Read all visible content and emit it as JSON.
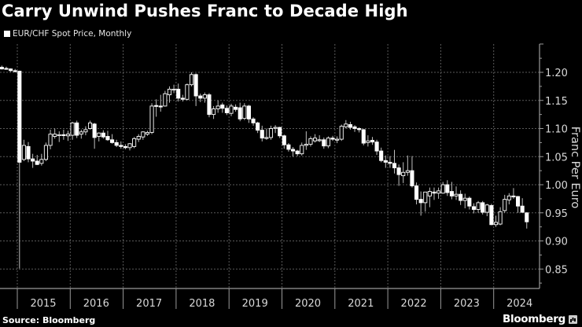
{
  "title": "Carry Unwind Pushes Franc to Decade High",
  "legend": {
    "label": "EUR/CHF Spot Price, Monthly"
  },
  "footer": {
    "source": "Source: Bloomberg",
    "brand": "Bloomberg"
  },
  "colors": {
    "background": "#000000",
    "candle_up_fill": "#000000",
    "candle_down_fill": "#ffffff",
    "candle_stroke": "#ffffff",
    "wick": "#bfbfbf",
    "grid": "#5a5a5a",
    "axis": "#9a9a9a",
    "text": "#ffffff"
  },
  "chart_data": {
    "type": "candlestick",
    "title": "Carry Unwind Pushes Franc to Decade High",
    "subtitle": "EUR/CHF Spot Price, Monthly",
    "xlabel": "",
    "ylabel": "Franc Per Euro",
    "ylim": [
      0.83,
      1.23
    ],
    "yticks": [
      1.2,
      1.15,
      1.1,
      1.05,
      1.0,
      0.95,
      0.9,
      0.85
    ],
    "ytick_labels": [
      "1.20",
      "1.15",
      "1.10",
      "1.05",
      "1.00",
      "0.95",
      "0.90",
      "0.85"
    ],
    "xticks": [
      "2015",
      "2016",
      "2017",
      "2018",
      "2019",
      "2020",
      "2021",
      "2022",
      "2023",
      "2024"
    ],
    "grid": true,
    "y_axis_position": "right",
    "source": "Source: Bloomberg",
    "candles": [
      {
        "t": "2014-09",
        "o": 1.209,
        "h": 1.212,
        "l": 1.205,
        "c": 1.206
      },
      {
        "t": "2014-10",
        "o": 1.207,
        "h": 1.21,
        "l": 1.205,
        "c": 1.206
      },
      {
        "t": "2014-11",
        "o": 1.206,
        "h": 1.207,
        "l": 1.201,
        "c": 1.203
      },
      {
        "t": "2014-12",
        "o": 1.203,
        "h": 1.206,
        "l": 1.2,
        "c": 1.202
      },
      {
        "t": "2015-01",
        "o": 1.202,
        "h": 1.203,
        "l": 0.851,
        "c": 1.04
      },
      {
        "t": "2015-02",
        "o": 1.045,
        "h": 1.08,
        "l": 1.042,
        "c": 1.07
      },
      {
        "t": "2015-03",
        "o": 1.068,
        "h": 1.076,
        "l": 1.04,
        "c": 1.046
      },
      {
        "t": "2015-04",
        "o": 1.046,
        "h": 1.055,
        "l": 1.03,
        "c": 1.042
      },
      {
        "t": "2015-05",
        "o": 1.042,
        "h": 1.053,
        "l": 1.035,
        "c": 1.036
      },
      {
        "t": "2015-06",
        "o": 1.038,
        "h": 1.055,
        "l": 1.034,
        "c": 1.045
      },
      {
        "t": "2015-07",
        "o": 1.045,
        "h": 1.075,
        "l": 1.042,
        "c": 1.07
      },
      {
        "t": "2015-08",
        "o": 1.07,
        "h": 1.098,
        "l": 1.063,
        "c": 1.09
      },
      {
        "t": "2015-09",
        "o": 1.086,
        "h": 1.1,
        "l": 1.082,
        "c": 1.09
      },
      {
        "t": "2015-10",
        "o": 1.088,
        "h": 1.095,
        "l": 1.076,
        "c": 1.089
      },
      {
        "t": "2015-11",
        "o": 1.089,
        "h": 1.098,
        "l": 1.08,
        "c": 1.088
      },
      {
        "t": "2015-12",
        "o": 1.087,
        "h": 1.096,
        "l": 1.078,
        "c": 1.09
      },
      {
        "t": "2016-01",
        "o": 1.088,
        "h": 1.112,
        "l": 1.08,
        "c": 1.11
      },
      {
        "t": "2016-02",
        "o": 1.11,
        "h": 1.114,
        "l": 1.083,
        "c": 1.088
      },
      {
        "t": "2016-03",
        "o": 1.09,
        "h": 1.098,
        "l": 1.082,
        "c": 1.094
      },
      {
        "t": "2016-04",
        "o": 1.094,
        "h": 1.104,
        "l": 1.088,
        "c": 1.098
      },
      {
        "t": "2016-05",
        "o": 1.1,
        "h": 1.114,
        "l": 1.098,
        "c": 1.11
      },
      {
        "t": "2016-06",
        "o": 1.108,
        "h": 1.11,
        "l": 1.064,
        "c": 1.084
      },
      {
        "t": "2016-07",
        "o": 1.086,
        "h": 1.093,
        "l": 1.077,
        "c": 1.092
      },
      {
        "t": "2016-08",
        "o": 1.092,
        "h": 1.097,
        "l": 1.082,
        "c": 1.085
      },
      {
        "t": "2016-09",
        "o": 1.086,
        "h": 1.096,
        "l": 1.078,
        "c": 1.08
      },
      {
        "t": "2016-10",
        "o": 1.08,
        "h": 1.09,
        "l": 1.073,
        "c": 1.075
      },
      {
        "t": "2016-11",
        "o": 1.075,
        "h": 1.08,
        "l": 1.067,
        "c": 1.07
      },
      {
        "t": "2016-12",
        "o": 1.07,
        "h": 1.077,
        "l": 1.064,
        "c": 1.068
      },
      {
        "t": "2017-01",
        "o": 1.068,
        "h": 1.072,
        "l": 1.063,
        "c": 1.066
      },
      {
        "t": "2017-02",
        "o": 1.066,
        "h": 1.074,
        "l": 1.061,
        "c": 1.073
      },
      {
        "t": "2017-03",
        "o": 1.068,
        "h": 1.085,
        "l": 1.065,
        "c": 1.082
      },
      {
        "t": "2017-04",
        "o": 1.081,
        "h": 1.09,
        "l": 1.076,
        "c": 1.086
      },
      {
        "t": "2017-05",
        "o": 1.085,
        "h": 1.095,
        "l": 1.08,
        "c": 1.094
      },
      {
        "t": "2017-06",
        "o": 1.09,
        "h": 1.096,
        "l": 1.087,
        "c": 1.093
      },
      {
        "t": "2017-07",
        "o": 1.093,
        "h": 1.145,
        "l": 1.09,
        "c": 1.14
      },
      {
        "t": "2017-08",
        "o": 1.141,
        "h": 1.152,
        "l": 1.121,
        "c": 1.14
      },
      {
        "t": "2017-09",
        "o": 1.14,
        "h": 1.16,
        "l": 1.13,
        "c": 1.139
      },
      {
        "t": "2017-10",
        "o": 1.14,
        "h": 1.167,
        "l": 1.139,
        "c": 1.162
      },
      {
        "t": "2017-11",
        "o": 1.16,
        "h": 1.175,
        "l": 1.146,
        "c": 1.17
      },
      {
        "t": "2017-12",
        "o": 1.169,
        "h": 1.178,
        "l": 1.163,
        "c": 1.17
      },
      {
        "t": "2018-01",
        "o": 1.17,
        "h": 1.18,
        "l": 1.148,
        "c": 1.154
      },
      {
        "t": "2018-02",
        "o": 1.154,
        "h": 1.16,
        "l": 1.148,
        "c": 1.152
      },
      {
        "t": "2018-03",
        "o": 1.152,
        "h": 1.18,
        "l": 1.15,
        "c": 1.178
      },
      {
        "t": "2018-04",
        "o": 1.178,
        "h": 1.2,
        "l": 1.175,
        "c": 1.196
      },
      {
        "t": "2018-05",
        "o": 1.196,
        "h": 1.198,
        "l": 1.14,
        "c": 1.158
      },
      {
        "t": "2018-06",
        "o": 1.158,
        "h": 1.162,
        "l": 1.147,
        "c": 1.154
      },
      {
        "t": "2018-07",
        "o": 1.154,
        "h": 1.164,
        "l": 1.146,
        "c": 1.16
      },
      {
        "t": "2018-08",
        "o": 1.16,
        "h": 1.163,
        "l": 1.12,
        "c": 1.125
      },
      {
        "t": "2018-09",
        "o": 1.125,
        "h": 1.14,
        "l": 1.117,
        "c": 1.135
      },
      {
        "t": "2018-10",
        "o": 1.135,
        "h": 1.15,
        "l": 1.128,
        "c": 1.14
      },
      {
        "t": "2018-11",
        "o": 1.142,
        "h": 1.146,
        "l": 1.128,
        "c": 1.136
      },
      {
        "t": "2018-12",
        "o": 1.136,
        "h": 1.141,
        "l": 1.124,
        "c": 1.128
      },
      {
        "t": "2019-01",
        "o": 1.127,
        "h": 1.144,
        "l": 1.122,
        "c": 1.14
      },
      {
        "t": "2019-02",
        "o": 1.138,
        "h": 1.143,
        "l": 1.13,
        "c": 1.134
      },
      {
        "t": "2019-03",
        "o": 1.137,
        "h": 1.146,
        "l": 1.113,
        "c": 1.117
      },
      {
        "t": "2019-04",
        "o": 1.118,
        "h": 1.145,
        "l": 1.115,
        "c": 1.14
      },
      {
        "t": "2019-05",
        "o": 1.14,
        "h": 1.142,
        "l": 1.11,
        "c": 1.117
      },
      {
        "t": "2019-06",
        "o": 1.117,
        "h": 1.12,
        "l": 1.105,
        "c": 1.11
      },
      {
        "t": "2019-07",
        "o": 1.11,
        "h": 1.112,
        "l": 1.092,
        "c": 1.097
      },
      {
        "t": "2019-08",
        "o": 1.097,
        "h": 1.105,
        "l": 1.077,
        "c": 1.083
      },
      {
        "t": "2019-09",
        "o": 1.083,
        "h": 1.1,
        "l": 1.08,
        "c": 1.084
      },
      {
        "t": "2019-10",
        "o": 1.084,
        "h": 1.105,
        "l": 1.08,
        "c": 1.1
      },
      {
        "t": "2019-11",
        "o": 1.101,
        "h": 1.106,
        "l": 1.092,
        "c": 1.102
      },
      {
        "t": "2019-12",
        "o": 1.102,
        "h": 1.103,
        "l": 1.083,
        "c": 1.087
      },
      {
        "t": "2020-01",
        "o": 1.087,
        "h": 1.089,
        "l": 1.064,
        "c": 1.071
      },
      {
        "t": "2020-02",
        "o": 1.071,
        "h": 1.074,
        "l": 1.059,
        "c": 1.063
      },
      {
        "t": "2020-03",
        "o": 1.063,
        "h": 1.067,
        "l": 1.05,
        "c": 1.06
      },
      {
        "t": "2020-04",
        "o": 1.06,
        "h": 1.062,
        "l": 1.051,
        "c": 1.055
      },
      {
        "t": "2020-05",
        "o": 1.055,
        "h": 1.075,
        "l": 1.052,
        "c": 1.07
      },
      {
        "t": "2020-06",
        "o": 1.07,
        "h": 1.095,
        "l": 1.062,
        "c": 1.072
      },
      {
        "t": "2020-07",
        "o": 1.072,
        "h": 1.086,
        "l": 1.068,
        "c": 1.082
      },
      {
        "t": "2020-08",
        "o": 1.078,
        "h": 1.09,
        "l": 1.075,
        "c": 1.083
      },
      {
        "t": "2020-09",
        "o": 1.08,
        "h": 1.088,
        "l": 1.076,
        "c": 1.08
      },
      {
        "t": "2020-10",
        "o": 1.08,
        "h": 1.084,
        "l": 1.064,
        "c": 1.069
      },
      {
        "t": "2020-11",
        "o": 1.069,
        "h": 1.086,
        "l": 1.065,
        "c": 1.083
      },
      {
        "t": "2020-12",
        "o": 1.083,
        "h": 1.087,
        "l": 1.078,
        "c": 1.081
      },
      {
        "t": "2021-01",
        "o": 1.08,
        "h": 1.086,
        "l": 1.074,
        "c": 1.081
      },
      {
        "t": "2021-02",
        "o": 1.081,
        "h": 1.107,
        "l": 1.078,
        "c": 1.104
      },
      {
        "t": "2021-03",
        "o": 1.103,
        "h": 1.115,
        "l": 1.1,
        "c": 1.108
      },
      {
        "t": "2021-04",
        "o": 1.107,
        "h": 1.112,
        "l": 1.098,
        "c": 1.102
      },
      {
        "t": "2021-05",
        "o": 1.103,
        "h": 1.106,
        "l": 1.094,
        "c": 1.1
      },
      {
        "t": "2021-06",
        "o": 1.1,
        "h": 1.102,
        "l": 1.093,
        "c": 1.098
      },
      {
        "t": "2021-07",
        "o": 1.098,
        "h": 1.099,
        "l": 1.07,
        "c": 1.074
      },
      {
        "t": "2021-08",
        "o": 1.075,
        "h": 1.088,
        "l": 1.068,
        "c": 1.078
      },
      {
        "t": "2021-09",
        "o": 1.079,
        "h": 1.085,
        "l": 1.071,
        "c": 1.076
      },
      {
        "t": "2021-10",
        "o": 1.076,
        "h": 1.08,
        "l": 1.053,
        "c": 1.06
      },
      {
        "t": "2021-11",
        "o": 1.06,
        "h": 1.066,
        "l": 1.04,
        "c": 1.043
      },
      {
        "t": "2021-12",
        "o": 1.043,
        "h": 1.052,
        "l": 1.03,
        "c": 1.04
      },
      {
        "t": "2022-01",
        "o": 1.04,
        "h": 1.051,
        "l": 1.03,
        "c": 1.038
      },
      {
        "t": "2022-02",
        "o": 1.038,
        "h": 1.062,
        "l": 1.02,
        "c": 1.03
      },
      {
        "t": "2022-03",
        "o": 1.03,
        "h": 1.036,
        "l": 0.998,
        "c": 1.018
      },
      {
        "t": "2022-04",
        "o": 1.016,
        "h": 1.04,
        "l": 1.003,
        "c": 1.022
      },
      {
        "t": "2022-05",
        "o": 1.022,
        "h": 1.052,
        "l": 1.016,
        "c": 1.025
      },
      {
        "t": "2022-06",
        "o": 1.025,
        "h": 1.051,
        "l": 0.995,
        "c": 0.998
      },
      {
        "t": "2022-07",
        "o": 0.998,
        "h": 1.004,
        "l": 0.965,
        "c": 0.974
      },
      {
        "t": "2022-08",
        "o": 0.974,
        "h": 0.988,
        "l": 0.945,
        "c": 0.968
      },
      {
        "t": "2022-09",
        "o": 0.968,
        "h": 0.982,
        "l": 0.952,
        "c": 0.987
      },
      {
        "t": "2022-10",
        "o": 0.98,
        "h": 0.995,
        "l": 0.96,
        "c": 0.988
      },
      {
        "t": "2022-11",
        "o": 0.987,
        "h": 0.995,
        "l": 0.973,
        "c": 0.985
      },
      {
        "t": "2022-12",
        "o": 0.985,
        "h": 0.995,
        "l": 0.975,
        "c": 0.989
      },
      {
        "t": "2023-01",
        "o": 0.985,
        "h": 1.005,
        "l": 0.984,
        "c": 1.0
      },
      {
        "t": "2023-02",
        "o": 1.0,
        "h": 1.008,
        "l": 0.98,
        "c": 0.986
      },
      {
        "t": "2023-03",
        "o": 0.988,
        "h": 1.005,
        "l": 0.974,
        "c": 0.98
      },
      {
        "t": "2023-04",
        "o": 0.98,
        "h": 0.997,
        "l": 0.973,
        "c": 0.983
      },
      {
        "t": "2023-05",
        "o": 0.983,
        "h": 0.99,
        "l": 0.964,
        "c": 0.972
      },
      {
        "t": "2023-06",
        "o": 0.972,
        "h": 0.984,
        "l": 0.958,
        "c": 0.976
      },
      {
        "t": "2023-07",
        "o": 0.976,
        "h": 0.979,
        "l": 0.956,
        "c": 0.962
      },
      {
        "t": "2023-08",
        "o": 0.961,
        "h": 0.967,
        "l": 0.949,
        "c": 0.956
      },
      {
        "t": "2023-09",
        "o": 0.956,
        "h": 0.971,
        "l": 0.95,
        "c": 0.968
      },
      {
        "t": "2023-10",
        "o": 0.968,
        "h": 0.971,
        "l": 0.947,
        "c": 0.951
      },
      {
        "t": "2023-11",
        "o": 0.951,
        "h": 0.966,
        "l": 0.944,
        "c": 0.964
      },
      {
        "t": "2023-12",
        "o": 0.963,
        "h": 0.966,
        "l": 0.928,
        "c": 0.929
      },
      {
        "t": "2024-01",
        "o": 0.929,
        "h": 0.945,
        "l": 0.925,
        "c": 0.933
      },
      {
        "t": "2024-02",
        "o": 0.93,
        "h": 0.96,
        "l": 0.928,
        "c": 0.952
      },
      {
        "t": "2024-03",
        "o": 0.954,
        "h": 0.982,
        "l": 0.95,
        "c": 0.974
      },
      {
        "t": "2024-04",
        "o": 0.973,
        "h": 0.985,
        "l": 0.965,
        "c": 0.98
      },
      {
        "t": "2024-05",
        "o": 0.98,
        "h": 0.994,
        "l": 0.975,
        "c": 0.979
      },
      {
        "t": "2024-06",
        "o": 0.979,
        "h": 0.98,
        "l": 0.95,
        "c": 0.962
      },
      {
        "t": "2024-07",
        "o": 0.962,
        "h": 0.976,
        "l": 0.95,
        "c": 0.951
      },
      {
        "t": "2024-08",
        "o": 0.95,
        "h": 0.951,
        "l": 0.922,
        "c": 0.934
      }
    ]
  }
}
